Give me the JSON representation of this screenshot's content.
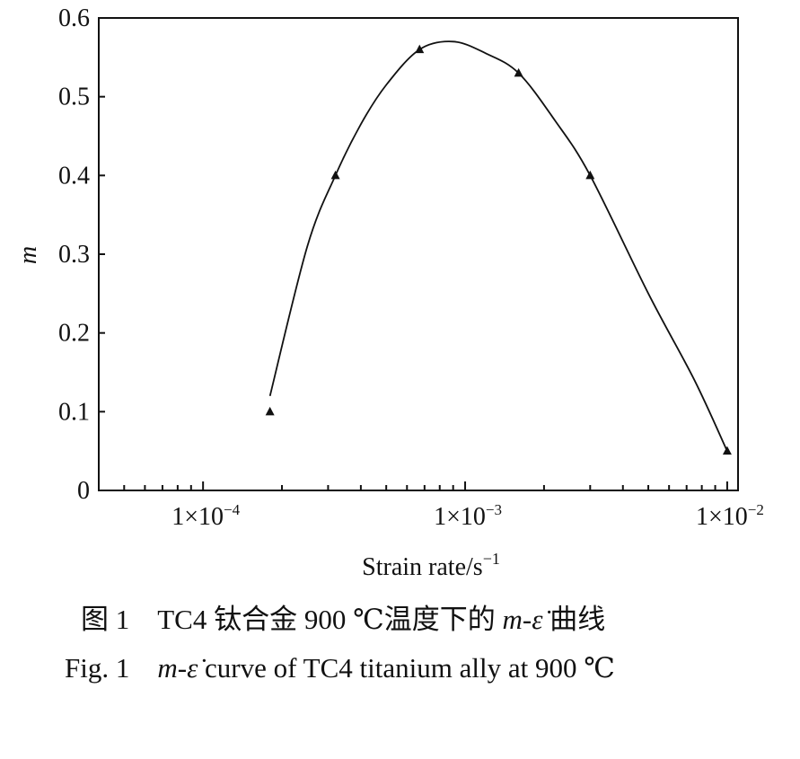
{
  "chart_data": {
    "type": "line",
    "xscale": "log",
    "xlabel": "Strain rate/s",
    "xlabel_superscript": "−1",
    "ylabel": "m",
    "xlim": [
      4e-05,
      0.011
    ],
    "ylim": [
      0,
      0.6
    ],
    "yticks": [
      0,
      0.1,
      0.2,
      0.3,
      0.4,
      0.5,
      0.6
    ],
    "ytick_labels": [
      "0",
      "0.1",
      "0.2",
      "0.3",
      "0.4",
      "0.5",
      "0.6"
    ],
    "xticks_major": [
      0.0001,
      0.001,
      0.01
    ],
    "xtick_labels": [
      {
        "base": "1×10",
        "exp": "−4"
      },
      {
        "base": "1×10",
        "exp": "−3"
      },
      {
        "base": "1×10",
        "exp": "−2"
      }
    ],
    "marker": "triangle",
    "color": "#111111",
    "series": [
      {
        "x": [
          0.00018,
          0.00032,
          0.00067,
          0.0016,
          0.003,
          0.01
        ],
        "y": [
          0.1,
          0.4,
          0.56,
          0.53,
          0.4,
          0.05
        ]
      }
    ],
    "curve": {
      "x": [
        0.00018,
        0.00025,
        0.00032,
        0.0004,
        0.0005,
        0.00067,
        0.0009,
        0.0012,
        0.0016,
        0.0022,
        0.003,
        0.005,
        0.0075,
        0.01
      ],
      "y": [
        0.12,
        0.31,
        0.4,
        0.465,
        0.515,
        0.56,
        0.57,
        0.555,
        0.53,
        0.47,
        0.4,
        0.25,
        0.14,
        0.05
      ]
    }
  },
  "caption_cn": {
    "label": "图 1",
    "text_before": "TC4 钛合金 900 ℃温度下的 ",
    "symbol": "m-ε̇",
    "text_after": " 曲线"
  },
  "caption_en": {
    "label": "Fig. 1",
    "symbol": "m-ε̇",
    "text_after": " curve of TC4 titanium ally at 900 ℃"
  }
}
